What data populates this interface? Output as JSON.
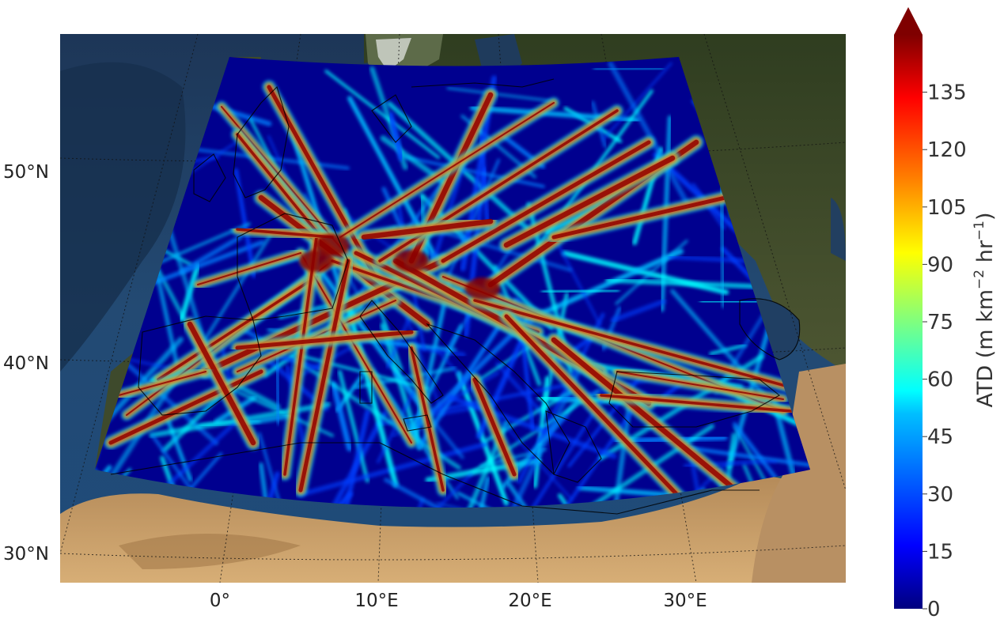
{
  "map": {
    "latitude_labels": [
      "50°N",
      "40°N",
      "30°N"
    ],
    "longitude_labels": [
      "0°",
      "10°E",
      "20°E",
      "30°E"
    ],
    "basemap": "satellite imagery (ocean, land, desert)",
    "field_region": "Europe and Mediterranean (conic projection)",
    "field_description": "air traffic density tracks"
  },
  "colorbar": {
    "title_prefix": "ATD (m km",
    "title_sup1": "−2",
    "title_mid": " hr",
    "title_sup2": "−1",
    "title_suffix": ")",
    "ticks": [
      "0",
      "15",
      "30",
      "45",
      "60",
      "75",
      "90",
      "105",
      "120",
      "135"
    ],
    "tick_values": [
      0,
      15,
      30,
      45,
      60,
      75,
      90,
      105,
      120,
      135
    ],
    "vmin": 0,
    "vmax": 150,
    "extend": "max",
    "colormap": "jet",
    "colors": [
      "#00007f",
      "#0000ff",
      "#007fff",
      "#00ffff",
      "#7fff7f",
      "#ffff00",
      "#ff7f00",
      "#ff0000",
      "#7f0000"
    ]
  }
}
